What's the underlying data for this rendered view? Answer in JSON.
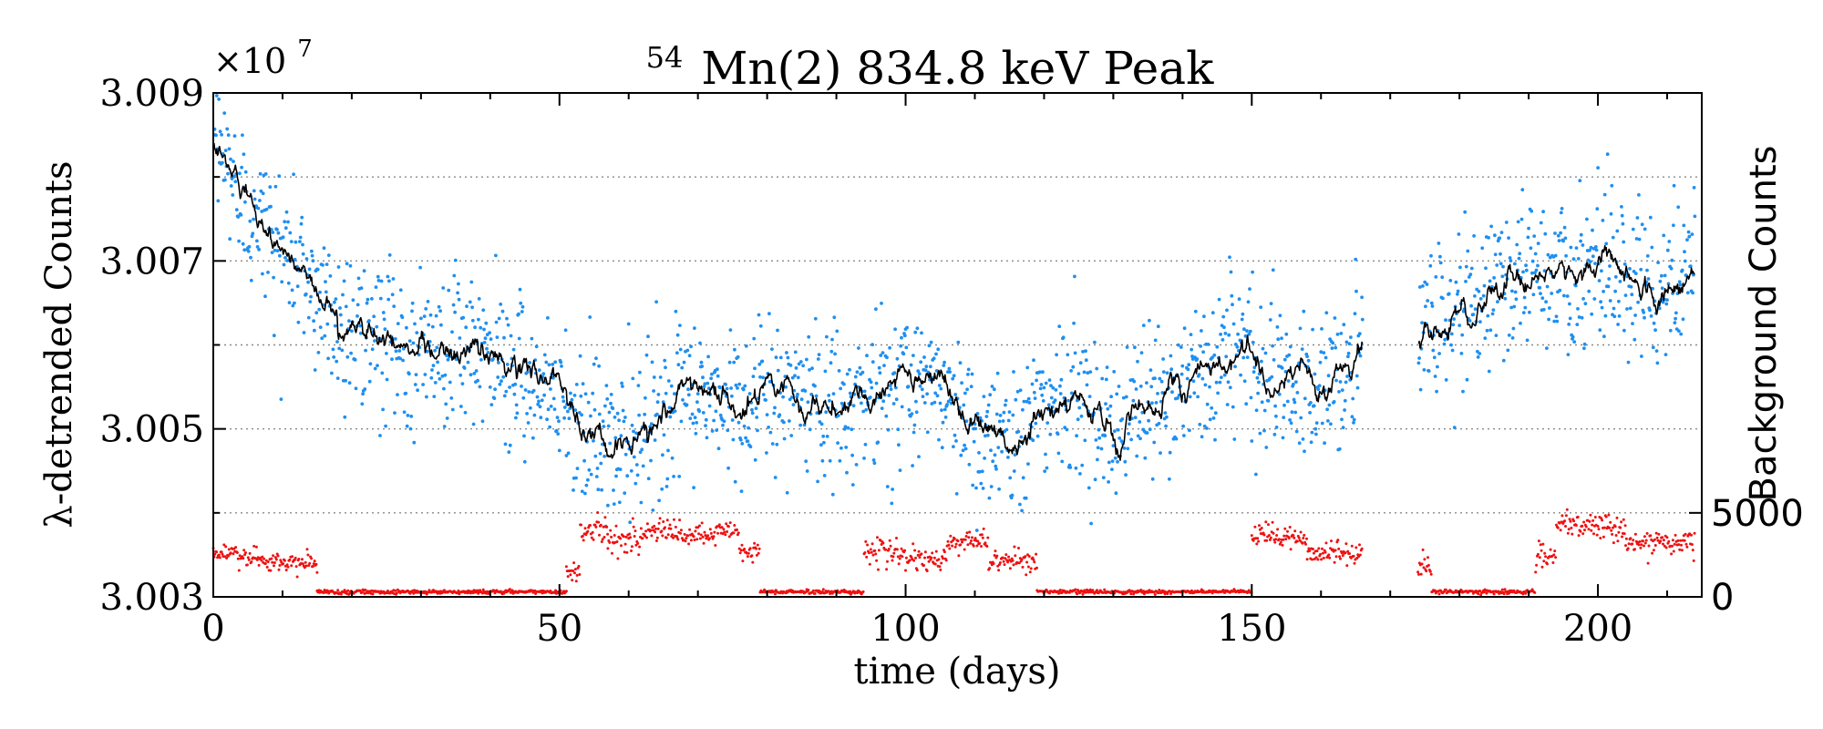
{
  "chart_data": {
    "type": "scatter",
    "title_superscript": "54",
    "title": "Mn(2) 834.8 keV Peak",
    "xlabel": "time (days)",
    "ylabel": "λ-detrended Counts",
    "y2label": "Background Counts",
    "y_offset_label": "×10",
    "y_offset_exponent": "7",
    "xlim": [
      0,
      215
    ],
    "ylim": [
      3.003,
      3.009
    ],
    "y2lim": [
      0,
      30000
    ],
    "x_ticks": [
      0,
      50,
      100,
      150,
      200
    ],
    "x_tick_labels": [
      "0",
      "50",
      "100",
      "150",
      "200"
    ],
    "x_minor_ticks": [
      10,
      20,
      30,
      40,
      60,
      70,
      80,
      90,
      110,
      120,
      130,
      140,
      160,
      170,
      180,
      190,
      210
    ],
    "y_ticks": [
      3.003,
      3.005,
      3.007,
      3.009
    ],
    "y_tick_labels": [
      "3.003",
      "3.005",
      "3.007",
      "3.009"
    ],
    "y_minor_ticks": [
      3.004,
      3.006,
      3.008
    ],
    "y_grid": [
      3.004,
      3.005,
      3.006,
      3.007,
      3.008
    ],
    "y2_ticks": [
      0,
      5000
    ],
    "y2_tick_labels": [
      "0",
      "5000"
    ],
    "grid": "horizontal dotted",
    "data_gap_days": [
      166,
      174
    ],
    "series": [
      {
        "name": "detrended counts (daily points)",
        "kind": "scatter",
        "color": "#1f8ff0",
        "axis": "left",
        "trend_x": [
          0,
          3,
          6,
          10,
          14,
          18,
          22,
          27,
          32,
          38,
          44,
          49,
          53,
          57,
          60,
          64,
          70,
          76,
          82,
          88,
          95,
          100,
          106,
          110,
          115,
          120,
          126,
          130,
          136,
          142,
          148,
          153,
          158,
          163,
          166,
          174,
          178,
          184,
          190,
          196,
          202,
          208,
          214
        ],
        "trend_y": [
          3.00845,
          3.008,
          3.00755,
          3.00715,
          3.00675,
          3.0063,
          3.0061,
          3.00595,
          3.006,
          3.0059,
          3.0057,
          3.0055,
          3.0051,
          3.00475,
          3.0049,
          3.0052,
          3.0054,
          3.0053,
          3.0054,
          3.0053,
          3.0054,
          3.0056,
          3.0055,
          3.005,
          3.0049,
          3.0053,
          3.0054,
          3.005,
          3.0053,
          3.0056,
          3.006,
          3.0056,
          3.0055,
          3.0056,
          3.006,
          3.0061,
          3.0063,
          3.0066,
          3.0069,
          3.0068,
          3.007,
          3.0066,
          3.007
        ],
        "scatter_sd": 0.00045
      },
      {
        "name": "running average",
        "kind": "line",
        "color": "#000000",
        "axis": "left"
      },
      {
        "name": "background counts",
        "kind": "scatter",
        "color": "#ee1111",
        "axis": "right",
        "segments": [
          {
            "start": 0,
            "end": 6,
            "value": 2500
          },
          {
            "start": 6,
            "end": 15,
            "value": 2000
          },
          {
            "start": 15,
            "end": 51,
            "value": 300
          },
          {
            "start": 51,
            "end": 53,
            "value": 1500
          },
          {
            "start": 53,
            "end": 57,
            "value": 4000
          },
          {
            "start": 57,
            "end": 62,
            "value": 3400
          },
          {
            "start": 62,
            "end": 67,
            "value": 3900
          },
          {
            "start": 67,
            "end": 73,
            "value": 3600
          },
          {
            "start": 73,
            "end": 76,
            "value": 3900
          },
          {
            "start": 76,
            "end": 79,
            "value": 2700
          },
          {
            "start": 79,
            "end": 94,
            "value": 300
          },
          {
            "start": 94,
            "end": 100,
            "value": 2700
          },
          {
            "start": 100,
            "end": 106,
            "value": 2100
          },
          {
            "start": 106,
            "end": 112,
            "value": 3300
          },
          {
            "start": 112,
            "end": 119,
            "value": 2200
          },
          {
            "start": 119,
            "end": 150,
            "value": 300
          },
          {
            "start": 150,
            "end": 158,
            "value": 3600
          },
          {
            "start": 158,
            "end": 166,
            "value": 2600
          },
          {
            "start": 174,
            "end": 176,
            "value": 1900
          },
          {
            "start": 176,
            "end": 191,
            "value": 300
          },
          {
            "start": 191,
            "end": 194,
            "value": 2400
          },
          {
            "start": 194,
            "end": 204,
            "value": 4200
          },
          {
            "start": 204,
            "end": 214,
            "value": 3200
          }
        ]
      }
    ]
  }
}
